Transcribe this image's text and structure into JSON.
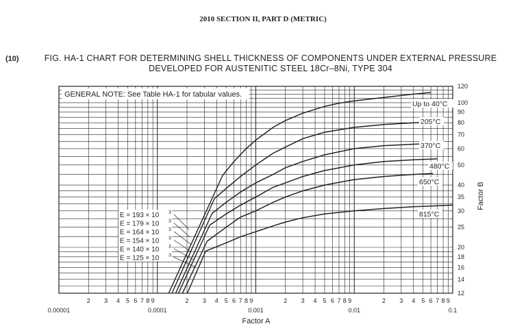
{
  "header": {
    "section": "2010 SECTION II, PART D (METRIC)"
  },
  "figure": {
    "number": "(10)",
    "title_line1": "FIG. HA-1   CHART FOR DETERMINING SHELL THICKNESS OF COMPONENTS UNDER EXTERNAL PRESSURE",
    "title_line2": "DEVELOPED FOR AUSTENITIC STEEL 18Cr–8Ni, TYPE 304"
  },
  "chart_data": {
    "type": "line",
    "note": "GENERAL NOTE: See Table HA-1 for tabular values.",
    "xlabel": "Factor A",
    "ylabel": "Factor B",
    "x_scale": "log",
    "y_scale": "log",
    "xlim": [
      1e-05,
      0.1
    ],
    "ylim": [
      12,
      120
    ],
    "grid": true,
    "x_decade_labels": [
      "0.00001",
      "0.0001",
      "0.001",
      "0.01",
      "0.1"
    ],
    "x_minor_labels": [
      "2",
      "3",
      "4",
      "5",
      "6",
      "7",
      "8",
      "9"
    ],
    "y_ticks": [
      12,
      14,
      16,
      18,
      20,
      25,
      30,
      35,
      40,
      50,
      60,
      70,
      80,
      90,
      100,
      120
    ],
    "elastic_lines": [
      {
        "label": "E = 193 × 10",
        "exp": "3",
        "E": 193000,
        "x_start": 0.000124
      },
      {
        "label": "E = 179 × 10",
        "exp": "3",
        "E": 179000,
        "x_start": 0.000134
      },
      {
        "label": "E = 164 × 10",
        "exp": "3",
        "E": 164000,
        "x_start": 0.000146
      },
      {
        "label": "E = 154 × 10",
        "exp": "3",
        "E": 154000,
        "x_start": 0.000156
      },
      {
        "label": "E = 140 × 10",
        "exp": "3",
        "E": 140000,
        "x_start": 0.000171
      },
      {
        "label": "E = 125 × 10",
        "exp": "3",
        "E": 125000,
        "x_start": 0.000192
      }
    ],
    "series": [
      {
        "name": "Up to 40°C",
        "x": [
          0.00046,
          0.0006,
          0.0008,
          0.001,
          0.0015,
          0.002,
          0.003,
          0.005,
          0.007,
          0.01,
          0.02,
          0.04,
          0.06
        ],
        "y": [
          44.5,
          52,
          60,
          66,
          76,
          82,
          89,
          96,
          99.5,
          102,
          106,
          110,
          112
        ]
      },
      {
        "name": "205°C",
        "x": [
          0.00038,
          0.0005,
          0.0007,
          0.001,
          0.0015,
          0.002,
          0.003,
          0.005,
          0.01,
          0.02,
          0.04,
          0.063
        ],
        "y": [
          34.4,
          38.5,
          44,
          50,
          57,
          61,
          67,
          72,
          76,
          78.5,
          80,
          80.5
        ]
      },
      {
        "name": "370°C",
        "x": [
          0.00036,
          0.0005,
          0.0007,
          0.001,
          0.0015,
          0.002,
          0.003,
          0.005,
          0.01,
          0.02,
          0.04,
          0.063
        ],
        "y": [
          29.2,
          33,
          37,
          41,
          45,
          48.5,
          52,
          56,
          60,
          62,
          63,
          63.5
        ]
      },
      {
        "name": "480°C",
        "x": [
          0.00034,
          0.0005,
          0.0007,
          0.001,
          0.0015,
          0.002,
          0.003,
          0.005,
          0.01,
          0.02,
          0.04,
          0.07
        ],
        "y": [
          25.6,
          29,
          32,
          35,
          39,
          41,
          44,
          47,
          50,
          52,
          53,
          53.5
        ]
      },
      {
        "name": "650°C",
        "x": [
          0.00032,
          0.0005,
          0.0007,
          0.001,
          0.0015,
          0.002,
          0.003,
          0.005,
          0.01,
          0.02,
          0.04,
          0.063
        ],
        "y": [
          21.4,
          25,
          28,
          30,
          33,
          35,
          37.5,
          40,
          42.5,
          44,
          45,
          45.5
        ]
      },
      {
        "name": "815°C",
        "x": [
          0.00031,
          0.0005,
          0.0007,
          0.001,
          0.0015,
          0.002,
          0.003,
          0.005,
          0.01,
          0.02,
          0.04,
          0.1
        ],
        "y": [
          19.2,
          21,
          22.5,
          23.8,
          25.4,
          26.5,
          27.8,
          29,
          30,
          30.8,
          31.4,
          32
        ]
      }
    ]
  }
}
